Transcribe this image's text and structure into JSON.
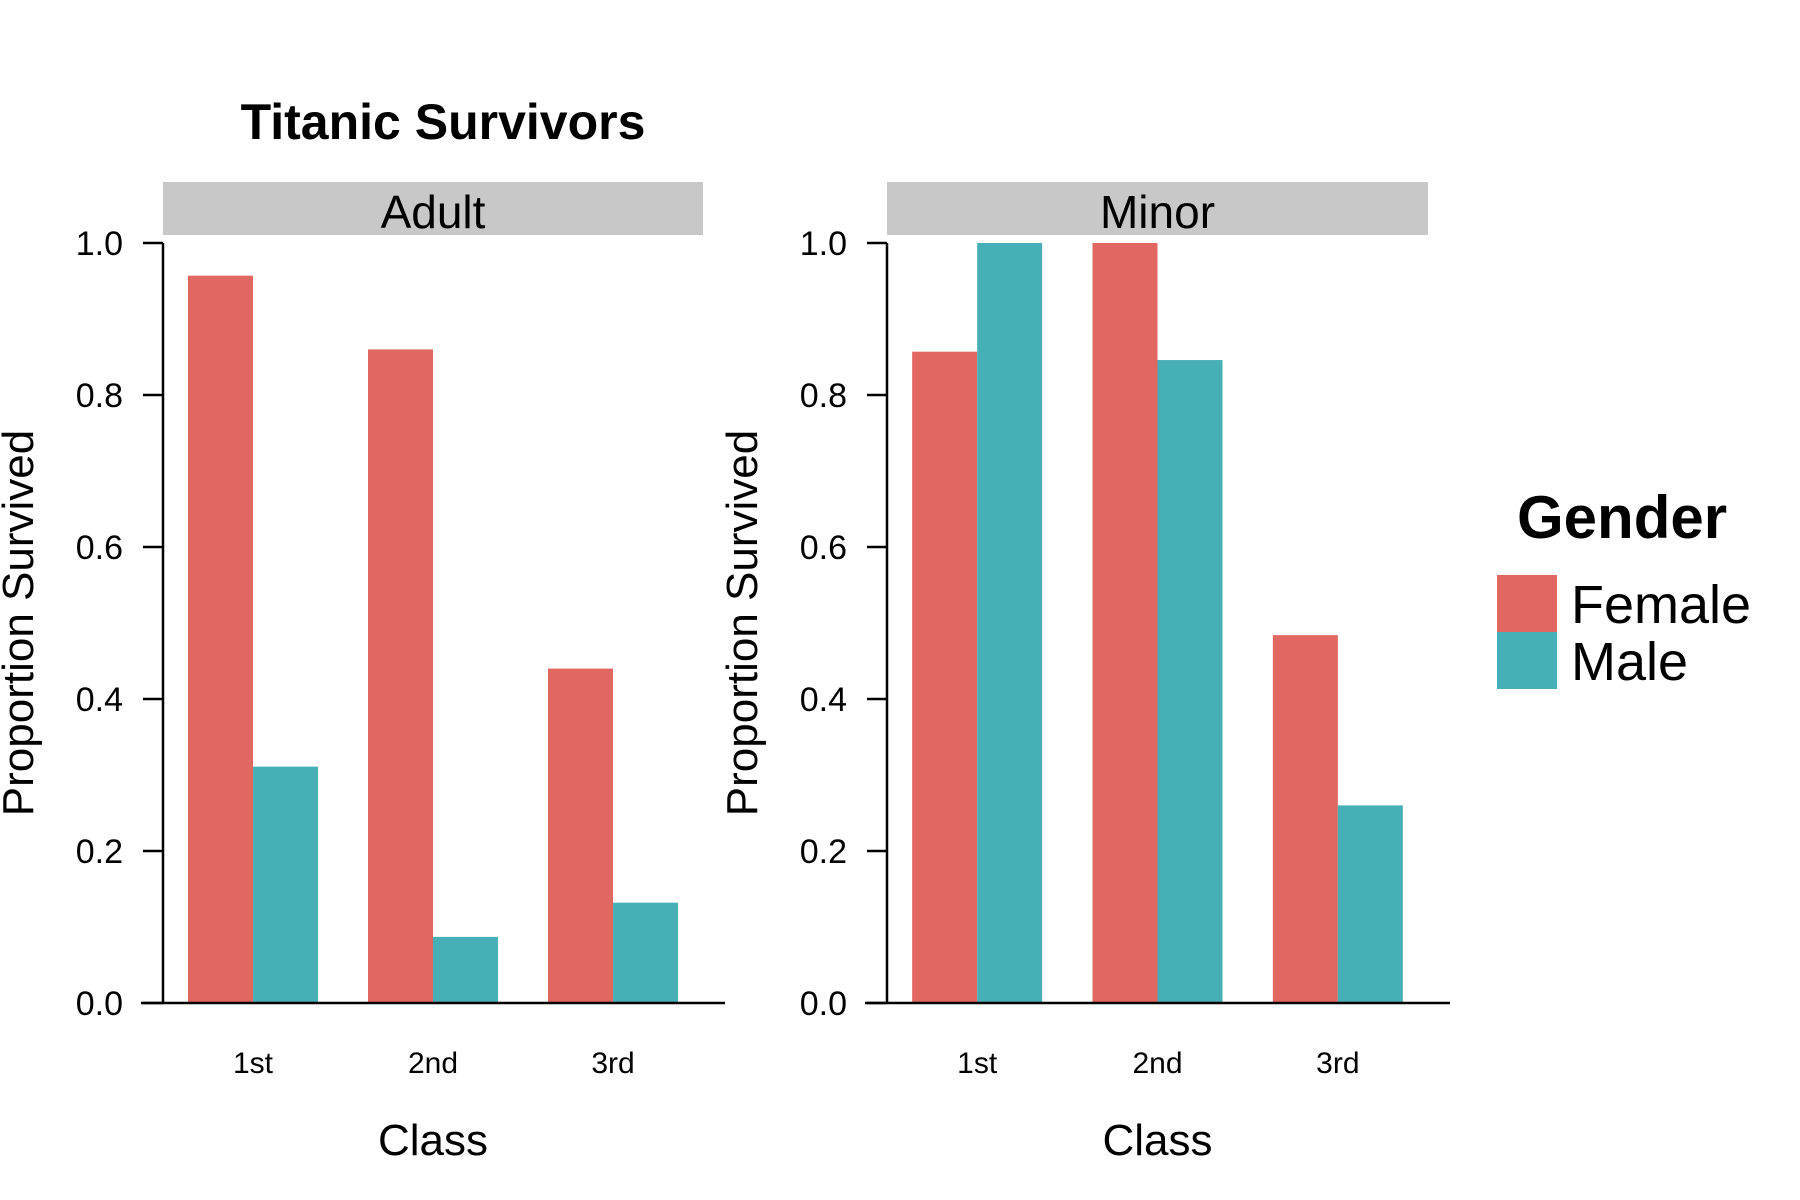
{
  "chart_data": {
    "type": "bar",
    "title": "Titanic Survivors",
    "categories": [
      "1st",
      "2nd",
      "3rd"
    ],
    "ylim": [
      0,
      1
    ],
    "yticks": [
      "0.0",
      "0.2",
      "0.4",
      "0.6",
      "0.8",
      "1.0"
    ],
    "xlabel": "Class",
    "ylabel": "Proportion Survived",
    "grid": false,
    "legend": {
      "title": "Gender",
      "placement": "right",
      "entries": [
        {
          "name": "Female",
          "color": "#E16761"
        },
        {
          "name": "Male",
          "color": "#47AFB6"
        }
      ]
    },
    "facets": [
      {
        "name": "Adult",
        "series": [
          {
            "name": "Female",
            "values": [
              0.957,
              0.86,
              0.44
            ]
          },
          {
            "name": "Male",
            "values": [
              0.311,
              0.087,
              0.132
            ]
          }
        ]
      },
      {
        "name": "Minor",
        "series": [
          {
            "name": "Female",
            "values": [
              0.857,
              1.0,
              0.484
            ]
          },
          {
            "name": "Male",
            "values": [
              1.0,
              0.846,
              0.26
            ]
          }
        ]
      }
    ],
    "strip_color": "#C8C8C8"
  }
}
